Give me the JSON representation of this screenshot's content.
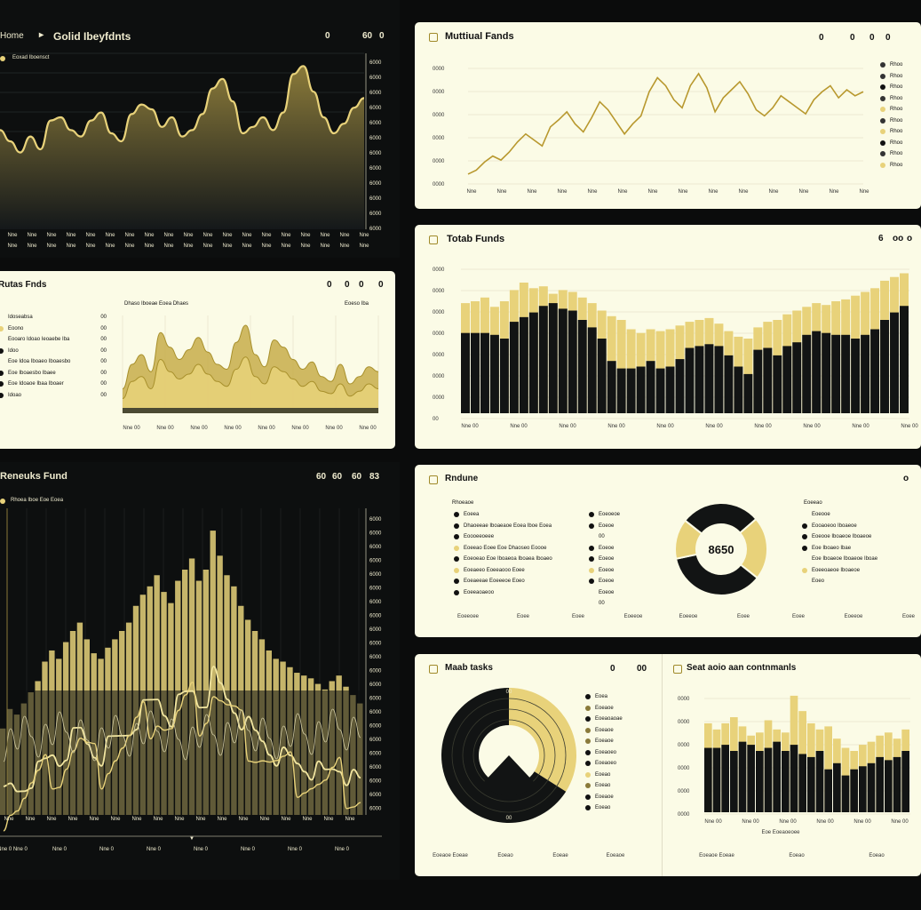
{
  "colors": {
    "gold": "#e8d27a",
    "goldDeep": "#b8982e",
    "dark": "#121414",
    "cream": "#fbfbe6"
  },
  "panel1": {
    "title": "Golid Ibeyfdnts",
    "nav": "▸",
    "ctrl": [
      "0",
      "60",
      "0"
    ],
    "legend": "Eoxad Iboensct",
    "xticks": [
      "Nne",
      "Nne",
      "Nne",
      "Nne",
      "Nne",
      "Nne",
      "Nne",
      "Nne",
      "Nne",
      "Nne",
      "Nne",
      "Nne",
      "Nne",
      "Nne",
      "Nne",
      "Nne",
      "Nne",
      "Nne",
      "Nne"
    ],
    "yticks": [
      "6000",
      "6000",
      "6000",
      "6000",
      "6000",
      "6000",
      "6000",
      "6000",
      "6000",
      "6000",
      "6000",
      "6000"
    ]
  },
  "panel2": {
    "title": "Muttiual Fands",
    "ctrl": [
      "0",
      "0",
      "0",
      "0"
    ],
    "yticks": [
      "0000",
      "0000",
      "0000",
      "0000",
      "0000",
      "0000"
    ],
    "xticks": [
      "Nne",
      "Nne",
      "Nne",
      "Nne",
      "Nne",
      "Nne",
      "Nne",
      "Nne",
      "Nne",
      "Nne",
      "Nne",
      "Nne",
      "Nne",
      "Nne"
    ],
    "legend": [
      "Rhoo",
      "Rhoo",
      "Rhoo",
      "Rhoo",
      "Rhoo",
      "Rhoo",
      "Rhoo",
      "Rhoo",
      "Rhoo",
      "Rhoo"
    ]
  },
  "panel3": {
    "title": "Rutas Fnds",
    "ctrl": [
      "0",
      "0",
      "0",
      "0"
    ],
    "caption": "Dhaso Iboeae Eoea Dhaes",
    "caption2": "Eoeso Iba",
    "legend": [
      "Idoseabsa",
      "Eoono",
      "Eooaro Idoao Ieoaebe Iba",
      "Idoo",
      "Eoe Idoa Iboaeo Iboaesbo",
      "Eoe Iboaesbo Ibaee",
      "Eoe Idoaoe Ibaa Iboaer",
      "Idoao"
    ],
    "legendv": [
      "00",
      "00",
      "00",
      "00",
      "00",
      "00",
      "00",
      "00"
    ],
    "xticks": [
      "Nne 00",
      "Nne 00",
      "Nne 00",
      "Nne 00",
      "Nne 00",
      "Nne 00",
      "Nne 00",
      "Nne 00"
    ]
  },
  "panel4": {
    "title": "Totab Funds",
    "ctrl": [
      "6",
      "oo",
      "o"
    ],
    "yticks": [
      "0000",
      "0000",
      "0000",
      "0000",
      "0000",
      "0000",
      "0000",
      "00"
    ],
    "xticks": [
      "Nne 00",
      "Nne 00",
      "Nne 00",
      "Nne 00",
      "Nne 00",
      "Nne 00",
      "Nne 00",
      "Nne 00",
      "Nne 00",
      "Nne 00"
    ]
  },
  "panel5": {
    "title": "Reneuks Fund",
    "ctrl": [
      "60",
      "60",
      "60",
      "83"
    ],
    "legend": "Rhoea Iboe Eoe Eoea",
    "yticks": [
      "6000",
      "6000",
      "6000",
      "6000",
      "6000",
      "6000",
      "6000",
      "6000",
      "6000",
      "6000",
      "6000",
      "6000",
      "6000",
      "6000",
      "6000",
      "6000",
      "6000",
      "6000",
      "6000",
      "6000",
      "6000",
      "6000"
    ],
    "xticks": [
      "Nne",
      "Nne",
      "Nne",
      "Nne",
      "Nne",
      "Nne",
      "Nne",
      "Nne",
      "Nne",
      "Nne",
      "Nne",
      "Nne",
      "Nne",
      "Nne",
      "Nne",
      "Nne",
      "Nne"
    ],
    "bottom": [
      "Nne 0 Nne 0",
      "Nne 0",
      "Nne 0",
      "Nne 0",
      "Nne 0",
      "Nne 0",
      "Nne 0",
      "Nne 0"
    ]
  },
  "panel6": {
    "title": "Rndune",
    "centerValue": "8650",
    "ctrl": [
      "o"
    ],
    "leftTitle": "Rhoeaoe",
    "leftLegend": [
      "Eoeea",
      "Dhaoeeae Iboaeaoe Eoea Iboe Eoea",
      "Eoooeeoeee",
      "Eoeeao Eoee Eoe Dhaoseo Eoooe",
      "Eoeoeao Eoe Iboaeoa Iboaea Iboaeo",
      "Eoeaeeo Eoeeaooo Eoee",
      "Eoeaeeae Eoeeeoe Eoeo",
      "Eoeeaoaeoo"
    ],
    "leftColV": [
      "Eoeoeoe",
      "Eoeoe",
      "00",
      "Eoeoe",
      "Eoeoe",
      "Eoeoe",
      "Eoeoe",
      "Eoeoe",
      "00"
    ],
    "rightTitle": "Eoeeao",
    "rightLegend": [
      "Eoeooe",
      "Eooaoeoo Iboaeoe",
      "Eoeooe Iboaeoe Iboaeoe",
      "Eoe Iboaeo Ibae",
      "Eoe Iboaeoe Iboaeoe Iboae",
      "Eoeeoaeoe Iboaeoe",
      "Eoeo"
    ],
    "rightLegendV": [
      "Eoeo"
    ],
    "xticks": [
      "Eoeeoee",
      "Eoee",
      "Eoee",
      "Eoeeoe",
      "Eoeeoe",
      "Eoee",
      "Eoee",
      "Eoeeoe",
      "Eoee"
    ]
  },
  "panel7": {
    "title": "Maab tasks",
    "ctrl": [
      "0",
      "00"
    ],
    "legend": [
      "Eoea",
      "Eoeaoe",
      "Eoeaoaoae",
      "Eoeaoe",
      "Eoeaoe",
      "Eoeaoeo",
      "Eoeaoeo",
      "Eoeao",
      "Eoeao",
      "Eoeaoe",
      "Eoeao"
    ],
    "rings": [
      "00",
      "00"
    ],
    "xticks": [
      "Eoeaoe Eoeae",
      "Eoeao",
      "Eoeae",
      "Eoeaoe"
    ]
  },
  "panel8": {
    "title": "Seat aoio aan contnmanls",
    "yticks": [
      "0000",
      "0000",
      "0000",
      "0000",
      "0000",
      "0000"
    ],
    "xticks": [
      "Nne 00",
      "Nne 00",
      "Nne 00",
      "Nne 00",
      "Nne 00",
      "Nne 00"
    ],
    "xlabel": "Eoe Eoeaoeoee",
    "bottom": [
      "Eoeaoe Eoeae",
      "Eoeao",
      "Eoeao"
    ]
  },
  "chart_data": [
    {
      "type": "area",
      "title": "Golid Ibeyfdnts",
      "series": [
        {
          "name": "Eoxad Iboensct",
          "values": [
            62,
            55,
            48,
            58,
            50,
            68,
            70,
            62,
            58,
            68,
            73,
            60,
            55,
            72,
            78,
            75,
            64,
            70,
            58,
            62,
            72,
            88,
            94,
            80,
            60,
            64,
            70,
            62,
            73,
            97,
            102,
            86,
            70,
            60,
            66,
            76,
            82
          ]
        }
      ]
    },
    {
      "type": "line",
      "title": "Muttiual Fands",
      "series": [
        {
          "values": [
            8,
            12,
            20,
            26,
            22,
            30,
            40,
            48,
            42,
            36,
            55,
            62,
            70,
            58,
            50,
            64,
            80,
            72,
            60,
            48,
            58,
            66,
            90,
            104,
            96,
            82,
            74,
            96,
            108,
            94,
            70,
            84,
            92,
            100,
            88,
            72,
            66,
            74,
            86,
            80,
            74,
            68,
            82,
            90,
            96,
            84,
            92,
            86,
            90
          ]
        }
      ]
    },
    {
      "type": "area",
      "title": "Rutas Fnds",
      "series": [
        {
          "values": [
            20,
            40,
            48,
            34,
            66,
            54,
            44,
            52,
            62,
            50,
            40,
            36,
            58,
            72,
            48,
            38,
            60,
            54,
            44,
            36,
            42,
            30,
            26,
            40,
            24,
            30,
            38,
            34
          ]
        },
        {
          "values": [
            12,
            26,
            30,
            20,
            44,
            34,
            28,
            32,
            40,
            32,
            26,
            22,
            36,
            46,
            30,
            24,
            38,
            34,
            28,
            22,
            26,
            18,
            16,
            24,
            14,
            18,
            24,
            20
          ]
        }
      ]
    },
    {
      "type": "bar",
      "title": "Totab Funds",
      "series": [
        {
          "name": "dark",
          "values": [
            86,
            86,
            86,
            84,
            80,
            98,
            103,
            108,
            115,
            118,
            112,
            110,
            100,
            92,
            80,
            56,
            48,
            48,
            50,
            56,
            48,
            50,
            58,
            70,
            72,
            74,
            72,
            62,
            50,
            42,
            68,
            70,
            62,
            72,
            76,
            84,
            88,
            86,
            84,
            84,
            80,
            84,
            90,
            100,
            108,
            115
          ]
        },
        {
          "name": "gold",
          "values": [
            118,
            120,
            124,
            114,
            120,
            132,
            140,
            134,
            136,
            128,
            132,
            130,
            124,
            118,
            110,
            104,
            100,
            90,
            86,
            90,
            88,
            90,
            94,
            98,
            100,
            102,
            96,
            88,
            82,
            80,
            92,
            98,
            100,
            106,
            110,
            114,
            118,
            116,
            120,
            122,
            126,
            130,
            134,
            142,
            146,
            150
          ]
        }
      ]
    },
    {
      "type": "bar",
      "title": "Reneuks Fund",
      "series": [
        {
          "values": [
            62,
            76,
            72,
            80,
            88,
            96,
            110,
            118,
            112,
            124,
            132,
            138,
            126,
            116,
            112,
            120,
            126,
            132,
            138,
            150,
            158,
            164,
            172,
            160,
            152,
            168,
            176,
            184,
            168,
            176,
            204,
            186,
            172,
            164,
            150,
            140,
            132,
            126,
            118,
            112,
            110,
            106,
            102,
            100,
            98,
            94,
            90,
            96,
            100,
            92,
            86,
            80
          ]
        },
        {
          "values": [
            46,
            52,
            50,
            54,
            60,
            64,
            70,
            76,
            72,
            80,
            88,
            92,
            84,
            78,
            76,
            82,
            86,
            90,
            94,
            102,
            108,
            112,
            116,
            108,
            104,
            112,
            118,
            122,
            114,
            118,
            132,
            124,
            116,
            110,
            102,
            96,
            90,
            86,
            80,
            76,
            74,
            72,
            70,
            68,
            66,
            64,
            62,
            66,
            68,
            62,
            58,
            56
          ]
        }
      ]
    },
    {
      "type": "pie",
      "title": "Rndune",
      "values": [
        28,
        22,
        36,
        14
      ]
    },
    {
      "type": "pie",
      "title": "Maab tasks",
      "values": [
        34,
        66
      ]
    },
    {
      "type": "bar",
      "title": "Seat aoio aan contnmanls",
      "series": [
        {
          "name": "dark",
          "values": [
            42,
            42,
            44,
            40,
            46,
            44,
            40,
            42,
            46,
            40,
            44,
            38,
            36,
            40,
            28,
            32,
            24,
            28,
            30,
            32,
            36,
            34,
            36,
            40
          ]
        },
        {
          "name": "gold",
          "values": [
            58,
            54,
            58,
            62,
            56,
            50,
            52,
            60,
            54,
            52,
            76,
            66,
            58,
            54,
            56,
            48,
            42,
            40,
            44,
            46,
            50,
            52,
            48,
            54
          ]
        }
      ]
    }
  ]
}
